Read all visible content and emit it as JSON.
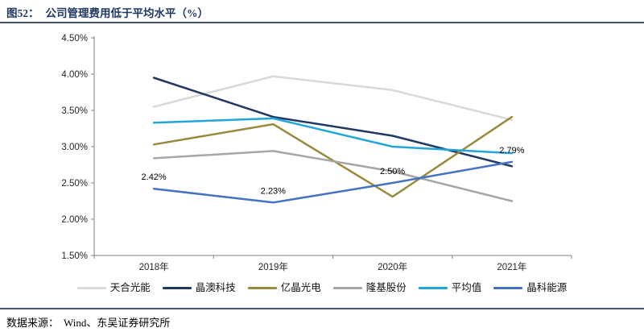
{
  "header": {
    "figure_label": "图52：",
    "title": "公司管理费用低于平均水平（%）"
  },
  "footer": {
    "source_label": "数据来源：",
    "source_text": "Wind、东吴证券研究所"
  },
  "style_colors": {
    "title_navy": "#1f3864",
    "rule": "#44546a",
    "axis": "#808080",
    "tick_text": "#262626",
    "data_label": "#000000"
  },
  "chart_data": {
    "type": "line",
    "title": "公司管理费用低于平均水平（%）",
    "categories": [
      "2018年",
      "2019年",
      "2020年",
      "2021年"
    ],
    "y_ticks": [
      "4.50%",
      "4.00%",
      "3.50%",
      "3.00%",
      "2.50%",
      "2.00%",
      "1.50%"
    ],
    "ylim": [
      1.5,
      4.5
    ],
    "y_step": 0.5,
    "grid": false,
    "legend_position": "bottom",
    "series": [
      {
        "name": "天合光能",
        "color": "#d9d9d9",
        "values": [
          3.55,
          3.97,
          3.78,
          3.37
        ]
      },
      {
        "name": "晶澳科技",
        "color": "#1f3864",
        "values": [
          3.95,
          3.41,
          3.15,
          2.73
        ]
      },
      {
        "name": "亿晶光电",
        "color": "#998b3d",
        "values": [
          3.03,
          3.31,
          2.31,
          3.41
        ]
      },
      {
        "name": "隆基股份",
        "color": "#a6a6a6",
        "values": [
          2.84,
          2.94,
          2.66,
          2.25
        ]
      },
      {
        "name": "平均值",
        "color": "#22a5dc",
        "values": [
          3.33,
          3.39,
          3.0,
          2.91
        ]
      },
      {
        "name": "晶科能源",
        "color": "#4472c4",
        "values": [
          2.42,
          2.23,
          2.5,
          2.79
        ],
        "data_labels": [
          "2.42%",
          "2.23%",
          "2.50%",
          "2.79%"
        ]
      }
    ]
  }
}
